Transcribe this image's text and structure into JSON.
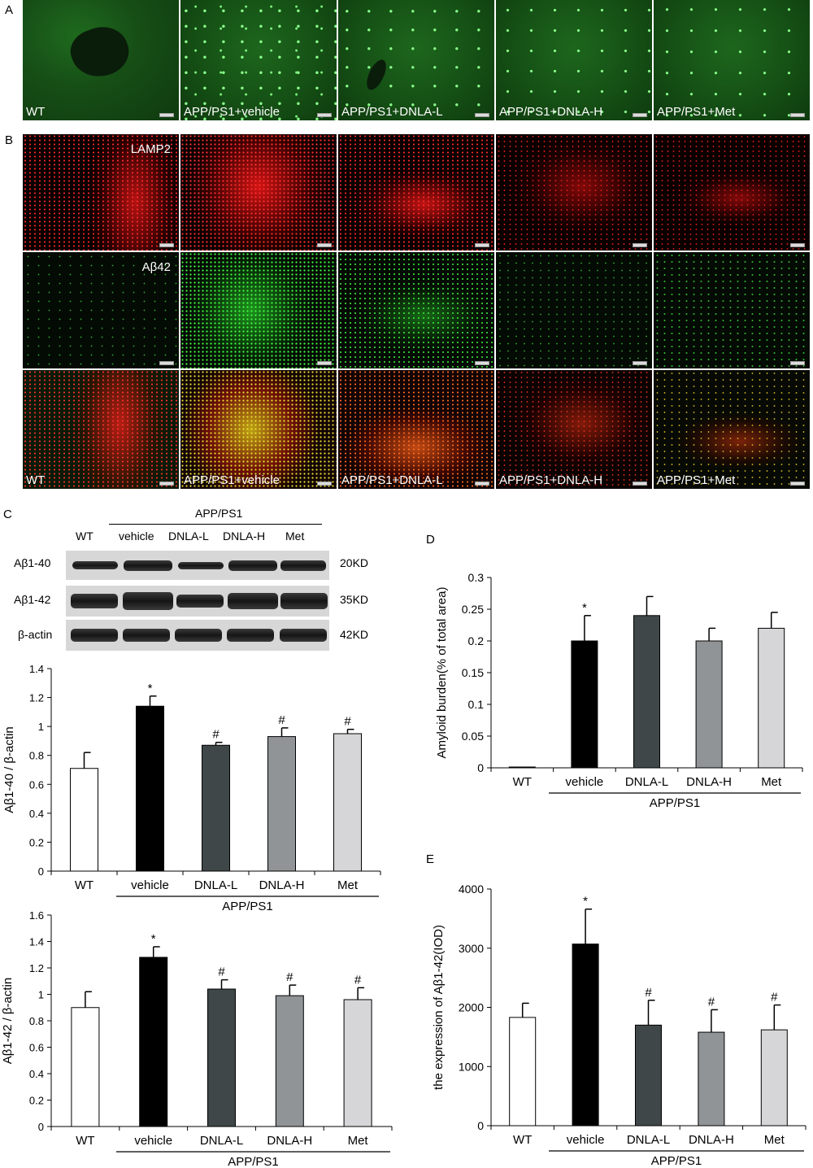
{
  "panels": {
    "A": {
      "letter": "A",
      "images": [
        {
          "label": "WT",
          "tone": "wt"
        },
        {
          "label": "APP/PS1+vehicle",
          "tone": "dots"
        },
        {
          "label": "APP/PS1+DNLA-L",
          "tone": "dots"
        },
        {
          "label": "APP/PS1+DNLA-H",
          "tone": "dots"
        },
        {
          "label": "APP/PS1+Met",
          "tone": "dots"
        }
      ]
    },
    "B": {
      "letter": "B",
      "row_labels": [
        "LAMP2",
        "Aβ42",
        ""
      ],
      "column_labels": [
        "WT",
        "APP/PS1+vehicle",
        "APP/PS1+DNLA-L",
        "APP/PS1+DNLA-H",
        "APP/PS1+Met"
      ]
    },
    "C": {
      "letter": "C",
      "group_label": "APP/PS1",
      "lanes": [
        "WT",
        "vehicle",
        "DNLA-L",
        "DNLA-H",
        "Met"
      ],
      "blots": [
        {
          "name": "Aβ1-40",
          "size": "20KD"
        },
        {
          "name": "Aβ1-42",
          "size": "35KD"
        },
        {
          "name": "β-actin",
          "size": "42KD"
        }
      ]
    },
    "D": {
      "letter": "D"
    },
    "E": {
      "letter": "E"
    }
  },
  "colors": {
    "WT": "#ffffff",
    "vehicle": "#000000",
    "DNLA-L": "#3f4749",
    "DNLA-H": "#909496",
    "Met": "#d6d6d8"
  },
  "chart_data": [
    {
      "id": "C1",
      "type": "bar",
      "categories": [
        "WT",
        "vehicle",
        "DNLA-L",
        "DNLA-H",
        "Met"
      ],
      "values": [
        0.71,
        1.14,
        0.87,
        0.93,
        0.95
      ],
      "errors": [
        0.11,
        0.07,
        0.02,
        0.06,
        0.03
      ],
      "annotations": [
        "",
        "*",
        "#",
        "#",
        "#"
      ],
      "ylabel": "Aβ1-40 / β-actin",
      "ylim": [
        0,
        1.4
      ],
      "yticks": [
        "0",
        "0.2",
        "0.4",
        "0.6",
        "0.8",
        "1",
        "1.2",
        "1.4"
      ],
      "group_label": "APP/PS1"
    },
    {
      "id": "C2",
      "type": "bar",
      "categories": [
        "WT",
        "vehicle",
        "DNLA-L",
        "DNLA-H",
        "Met"
      ],
      "values": [
        0.9,
        1.28,
        1.04,
        0.99,
        0.96
      ],
      "errors": [
        0.12,
        0.08,
        0.07,
        0.08,
        0.09
      ],
      "annotations": [
        "",
        "*",
        "#",
        "#",
        "#"
      ],
      "ylabel": "Aβ1-42 / β-actin",
      "ylim": [
        0,
        1.6
      ],
      "yticks": [
        "0",
        "0.2",
        "0.4",
        "0.6",
        "0.8",
        "1",
        "1.2",
        "1.4",
        "1.6"
      ],
      "group_label": "APP/PS1"
    },
    {
      "id": "D",
      "type": "bar",
      "categories": [
        "WT",
        "vehicle",
        "DNLA-L",
        "DNLA-H",
        "Met"
      ],
      "values": [
        0.0,
        0.2,
        0.24,
        0.2,
        0.22
      ],
      "errors": [
        0.0,
        0.04,
        0.03,
        0.02,
        0.025
      ],
      "annotations": [
        "",
        "*",
        "",
        "",
        ""
      ],
      "ylabel": "Amyloid burden(% of total area)",
      "ylim": [
        0,
        0.3
      ],
      "yticks": [
        "0",
        "0.05",
        "0.1",
        "0.15",
        "0.2",
        "0.25",
        "0.3"
      ],
      "group_label": "APP/PS1"
    },
    {
      "id": "E",
      "type": "bar",
      "categories": [
        "WT",
        "vehicle",
        "DNLA-L",
        "DNLA-H",
        "Met"
      ],
      "values": [
        1830,
        3070,
        1700,
        1580,
        1620
      ],
      "errors": [
        240,
        590,
        420,
        380,
        420
      ],
      "annotations": [
        "",
        "*",
        "#",
        "#",
        "#"
      ],
      "ylabel": "the expression of Aβ1-42(IOD)",
      "ylim": [
        0,
        4000
      ],
      "yticks": [
        "0",
        "1000",
        "2000",
        "3000",
        "4000"
      ],
      "group_label": "APP/PS1"
    }
  ]
}
